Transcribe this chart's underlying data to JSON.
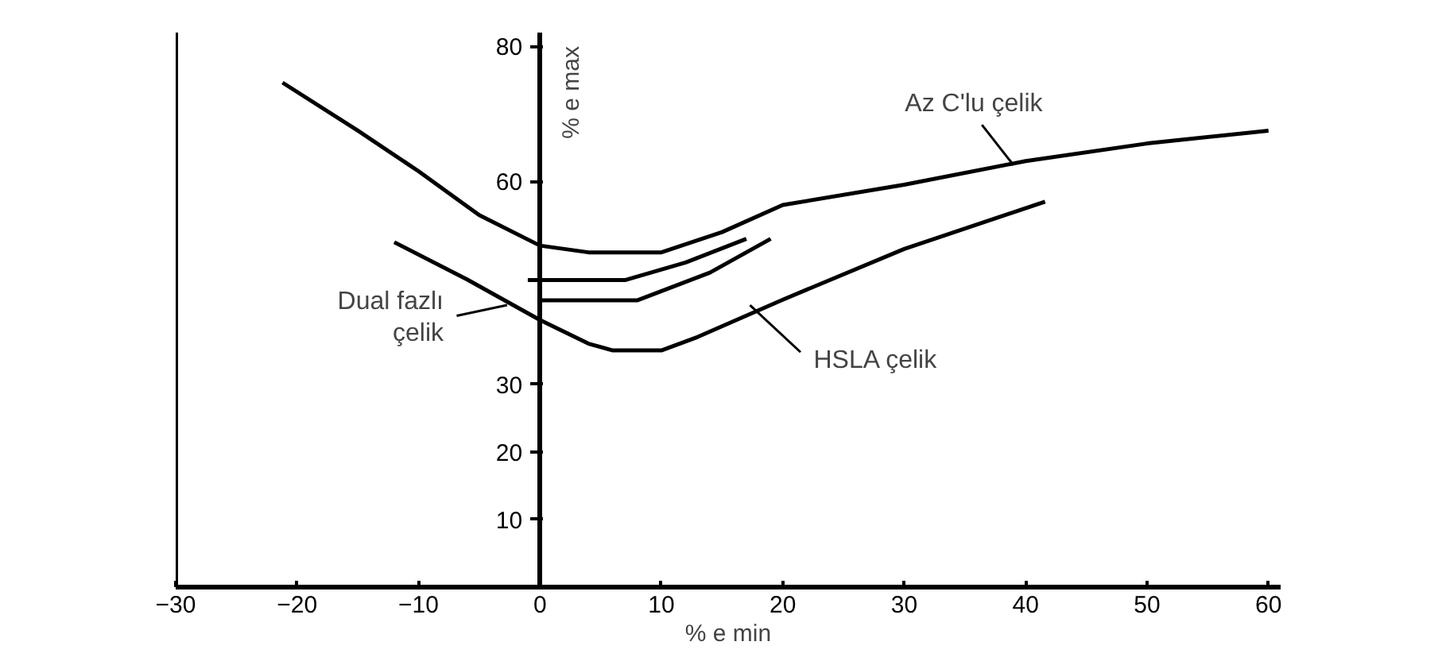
{
  "chart_data": {
    "type": "line",
    "xlabel": "% e min",
    "ylabel": "% e max",
    "xlim": [
      -30,
      61
    ],
    "ylim": [
      0,
      82
    ],
    "xticks": [
      -30,
      -20,
      -10,
      0,
      10,
      20,
      30,
      40,
      50,
      60
    ],
    "yticks": [
      10,
      20,
      30,
      60,
      80
    ],
    "line_style": "solid",
    "series": [
      {
        "color": "#000000",
        "x": [
          -21.2,
          -15,
          -10,
          -5,
          0,
          4,
          10,
          15,
          20,
          30,
          40,
          50,
          60
        ],
        "values": [
          74.6,
          67.5,
          61.5,
          55,
          50.5,
          49.5,
          49.5,
          52.5,
          56.5,
          59.5,
          63,
          65.6,
          67.5
        ]
      },
      {
        "color": "#000000",
        "x": [
          -1,
          7,
          12,
          17
        ],
        "values": [
          45.4,
          45.4,
          48,
          51.5
        ]
      },
      {
        "color": "#000000",
        "x": [
          0,
          8,
          14,
          19
        ],
        "values": [
          42.4,
          42.4,
          46.5,
          51.5
        ]
      },
      {
        "color": "#000000",
        "x": [
          -12,
          -6,
          0,
          4,
          6,
          10,
          13,
          20,
          30,
          41.6
        ],
        "values": [
          51,
          45.5,
          39.5,
          36,
          35,
          35,
          37,
          42.5,
          50,
          57
        ]
      }
    ],
    "annotations": [
      {
        "text": "Az C'lu çelik",
        "x": 39,
        "y": 62.4
      },
      {
        "text": "HSLA çelik",
        "x": 17.3,
        "y": 41.7
      },
      {
        "text": "Dual fazlı\nçelik",
        "x": -2.7,
        "y": 41.7
      }
    ]
  }
}
